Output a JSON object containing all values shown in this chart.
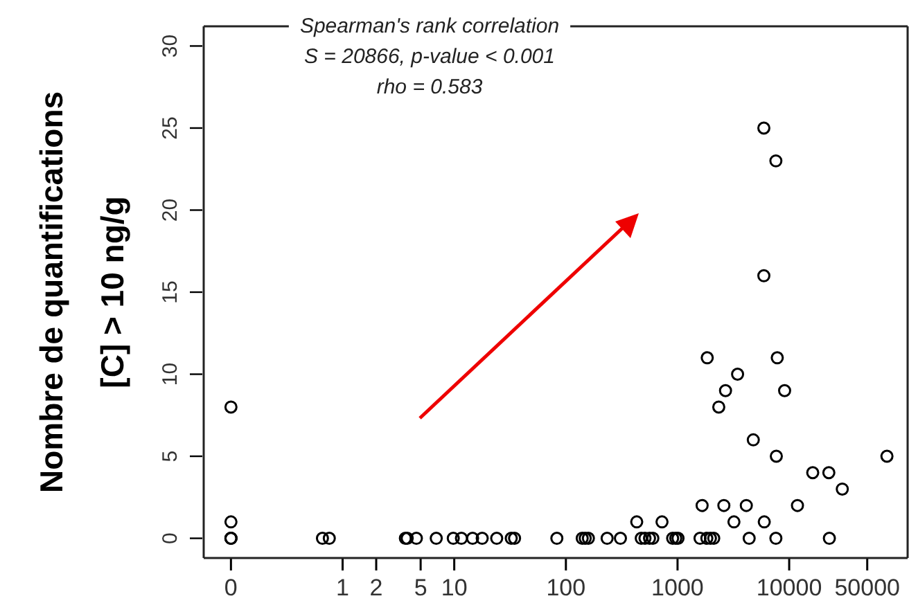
{
  "chart_data": {
    "type": "scatter",
    "ylabel": "Nombre de quantifications\n[C] > 10 ng/g",
    "annotations": [
      "Spearman's rank correlation",
      "S = 20866, p-value < 0.001",
      "rho = 0.583"
    ],
    "log": "x",
    "marker": "circle",
    "xlim": [
      0.057,
      115000
    ],
    "ylim": [
      -1.2,
      31.2
    ],
    "xticks": [
      {
        "value": 0.1,
        "label": "0"
      },
      1,
      2,
      5,
      10,
      100,
      1000,
      10000,
      50000
    ],
    "yticks": [
      0,
      5,
      10,
      15,
      20,
      25,
      30
    ],
    "series": [
      {
        "color": "#000000",
        "x": [
          0.1,
          0.1,
          0.1,
          0.1,
          0.1,
          0.66,
          0.76,
          3.65,
          3.79,
          4.58,
          6.9,
          9.8,
          11.6,
          14.6,
          17.8,
          24,
          32.4,
          34.7,
          83,
          140,
          149,
          159,
          234,
          308,
          473,
          511,
          561,
          601,
          904,
          964,
          1010,
          1590,
          1830,
          1970,
          2110,
          4380,
          7600,
          22900,
          431,
          726,
          3200,
          5980,
          1660,
          2600,
          4130,
          11860,
          29900,
          16250,
          22650,
          7670,
          75100,
          4770,
          2340,
          2690,
          9100,
          3450,
          1845,
          7820,
          5930,
          7600,
          5930
        ],
        "values": [
          8,
          1,
          0,
          0,
          0,
          0,
          0,
          0,
          0,
          0,
          0,
          0,
          0,
          0,
          0,
          0,
          0,
          0,
          0,
          0,
          0,
          0,
          0,
          0,
          0,
          0,
          0,
          0,
          0,
          0,
          0,
          0,
          0,
          0,
          0,
          0,
          0,
          0,
          1,
          1,
          1,
          1,
          2,
          2,
          2,
          2,
          3,
          4,
          4,
          5,
          5,
          6,
          8,
          9,
          9,
          10,
          11,
          11,
          16,
          23,
          25
        ]
      }
    ]
  }
}
